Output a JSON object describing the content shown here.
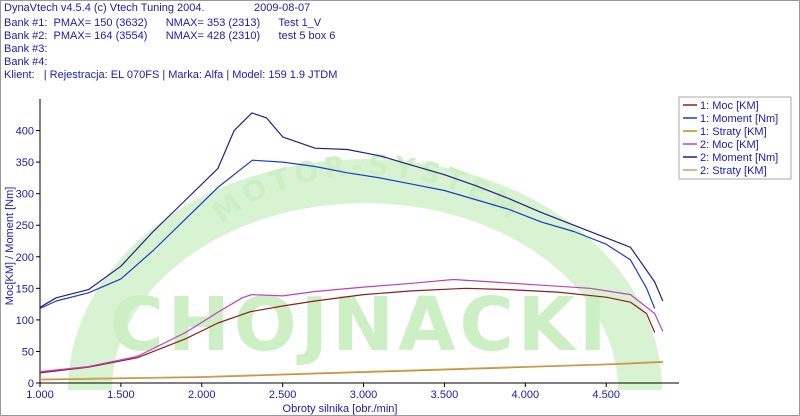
{
  "header": {
    "app_title": "DynaVtech v4.5.4 (c) Vtech Tuning 2004.",
    "date": "2009-08-07",
    "bank1": "Bank #1:  PMAX= 150 (3632)      NMAX= 353 (2313)      Test 1_V",
    "bank2": "Bank #2:  PMAX= 164 (3554)      NMAX= 428 (2310)      test 5 box 6",
    "bank3": "Bank #3:",
    "bank4": "Bank #4:",
    "client": "Klient:   | Rejestracja: EL 070FS | Marka: Alfa | Model: 159 1.9 JTDM"
  },
  "watermark": {
    "arc_text": "MOTOR-SYSTEM",
    "main_text": "CHOJNACKI",
    "color": "#ccefc4"
  },
  "chart_data": {
    "type": "line",
    "xlabel": "Obroty silnika [obr./min]",
    "ylabel": "Moc[KM] / Moment [Nm]",
    "xlim": [
      1000,
      4950
    ],
    "ylim": [
      0,
      450
    ],
    "xticks": [
      1000,
      1500,
      2000,
      2500,
      3000,
      3500,
      4000,
      4500
    ],
    "xtick_labels": [
      "1.000",
      "1.500",
      "2.000",
      "2.500",
      "3.000",
      "3.500",
      "4.000",
      "4.500"
    ],
    "yticks": [
      0,
      50,
      100,
      150,
      200,
      250,
      300,
      350,
      400
    ],
    "grid": false,
    "legend_position": "right",
    "series": [
      {
        "name": "1: Moc [KM]",
        "color": "#8b2020",
        "x": [
          1000,
          1300,
          1600,
          1900,
          2100,
          2300,
          2500,
          2700,
          3000,
          3300,
          3632,
          3900,
          4200,
          4500,
          4650,
          4750,
          4800
        ],
        "y": [
          16,
          25,
          40,
          70,
          95,
          113,
          122,
          130,
          140,
          146,
          150,
          148,
          144,
          136,
          128,
          110,
          80
        ]
      },
      {
        "name": "1: Moment [Nm]",
        "color": "#1a3ccc",
        "x": [
          1000,
          1100,
          1300,
          1500,
          1700,
          1900,
          2100,
          2313,
          2500,
          2700,
          2900,
          3100,
          3300,
          3500,
          3700,
          3900,
          4100,
          4300,
          4500,
          4650,
          4750,
          4800
        ],
        "y": [
          118,
          130,
          143,
          165,
          210,
          260,
          310,
          353,
          350,
          343,
          333,
          325,
          315,
          305,
          290,
          275,
          255,
          240,
          220,
          195,
          150,
          118
        ]
      },
      {
        "name": "1: Straty [KM]",
        "color": "#c08a10",
        "x": [
          1000,
          2000,
          3000,
          4000,
          4500,
          4850
        ],
        "y": [
          5,
          9,
          17,
          25,
          29,
          33
        ]
      },
      {
        "name": "2: Moc [KM]",
        "color": "#c040c0",
        "x": [
          1000,
          1300,
          1600,
          1900,
          2100,
          2250,
          2310,
          2500,
          2700,
          3000,
          3300,
          3554,
          3800,
          4100,
          4400,
          4650,
          4800,
          4850
        ],
        "y": [
          18,
          26,
          42,
          80,
          112,
          135,
          140,
          138,
          145,
          152,
          158,
          164,
          160,
          155,
          150,
          140,
          110,
          82
        ]
      },
      {
        "name": "2: Moment [Nm]",
        "color": "#20208a",
        "x": [
          1000,
          1100,
          1300,
          1500,
          1700,
          1900,
          2100,
          2200,
          2310,
          2400,
          2500,
          2700,
          2900,
          3100,
          3300,
          3500,
          3700,
          3900,
          4100,
          4300,
          4500,
          4650,
          4800,
          4850
        ],
        "y": [
          120,
          135,
          148,
          185,
          240,
          290,
          340,
          400,
          428,
          420,
          390,
          372,
          370,
          360,
          345,
          330,
          312,
          292,
          270,
          250,
          230,
          215,
          160,
          130
        ]
      },
      {
        "name": "2: Straty [KM]",
        "color": "#d0a060",
        "x": [
          1000,
          2000,
          3000,
          4000,
          4500,
          4850
        ],
        "y": [
          6,
          10,
          18,
          26,
          30,
          34
        ]
      }
    ]
  }
}
